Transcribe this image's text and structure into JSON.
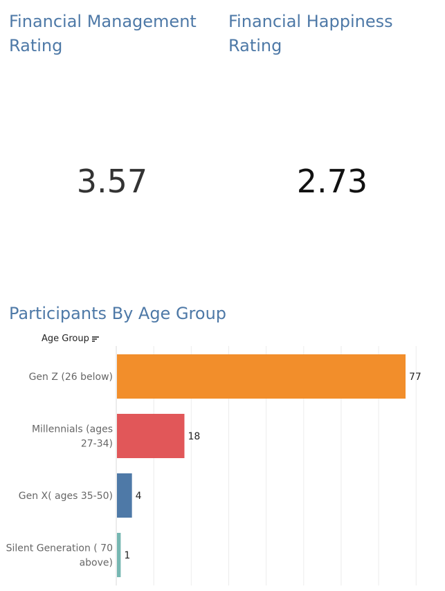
{
  "kpis": [
    {
      "title": "Financial Management\nRating",
      "value": "3.57"
    },
    {
      "title": "Financial Happiness\nRating",
      "value": "2.73"
    }
  ],
  "section_title": "Participants By Age Group",
  "axis_header": "Age Group",
  "chart_data": {
    "type": "bar",
    "orientation": "horizontal",
    "title": "Participants By Age Group",
    "ylabel": "Age Group",
    "xlabel": "",
    "categories": [
      [
        "Gen Z (26 below)"
      ],
      [
        "Millennials (ages",
        "27-34)"
      ],
      [
        "Gen X( ages 35-50)"
      ],
      [
        "Silent Generation ( 70",
        "above)"
      ]
    ],
    "values": [
      77,
      18,
      4,
      1
    ],
    "colors": [
      "#f28e2b",
      "#e15759",
      "#4e79a7",
      "#76b7b2"
    ],
    "xlim": [
      0,
      80
    ],
    "grid": true,
    "data_labels": true
  }
}
